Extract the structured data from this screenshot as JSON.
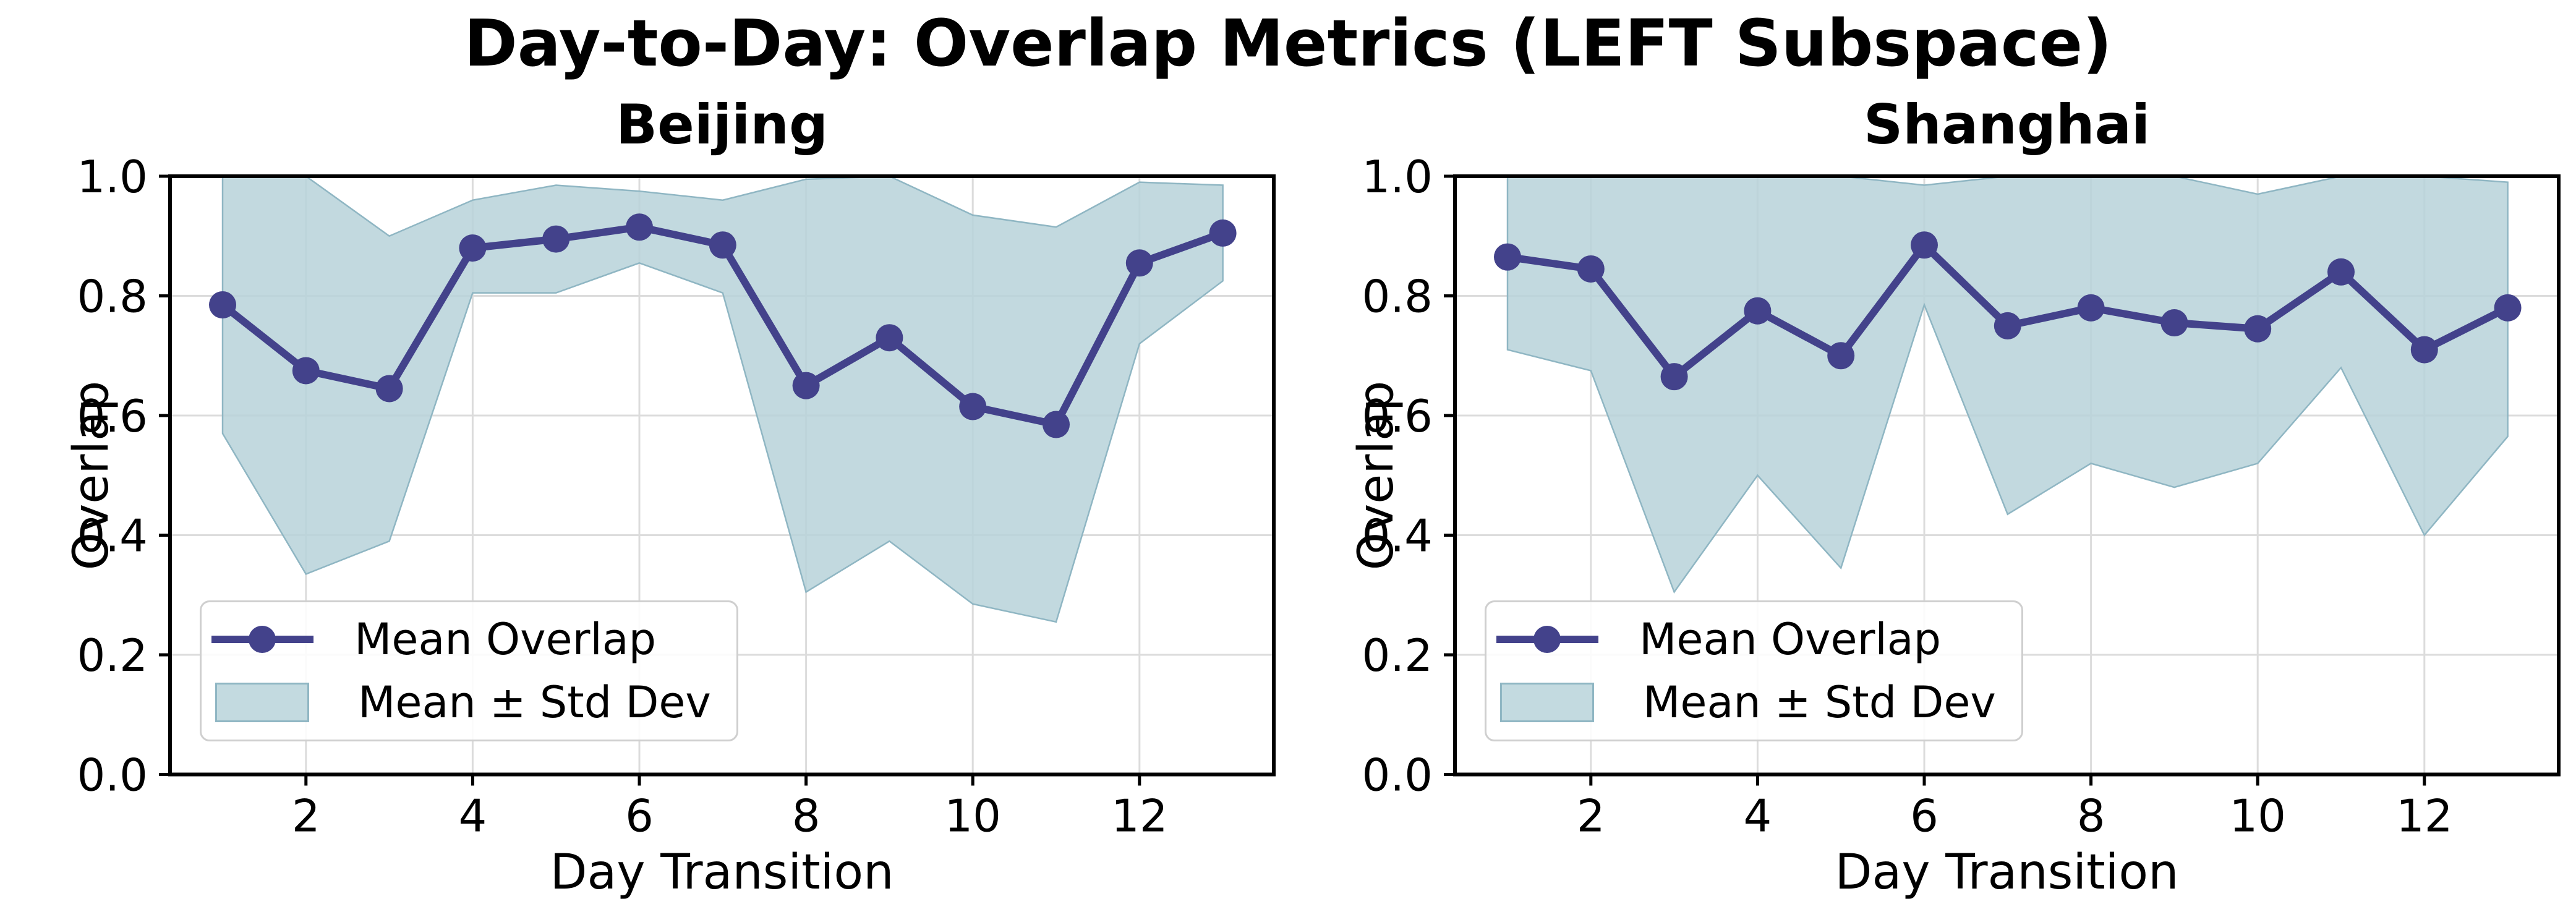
{
  "title": "Day-to-Day: Overlap Metrics (LEFT Subspace)",
  "legend": {
    "line_label": "Mean Overlap",
    "band_label": "Mean ± Std Dev"
  },
  "colors": {
    "line": "#43428b",
    "marker": "#43428b",
    "band_fill": "#b7d2d9",
    "band_edge": "#8fb6c3",
    "grid": "#dcdcdc",
    "spine": "#000000",
    "background": "#ffffff",
    "legend_border": "#cfcfcf",
    "text": "#000000"
  },
  "chart_data": [
    {
      "type": "line",
      "title": "Beijing",
      "xlabel": "Day Transition",
      "ylabel": "Overlap",
      "x": [
        1,
        2,
        3,
        4,
        5,
        6,
        7,
        8,
        9,
        10,
        11,
        12,
        13
      ],
      "series": [
        {
          "name": "Mean Overlap",
          "values": [
            0.785,
            0.675,
            0.645,
            0.88,
            0.895,
            0.915,
            0.885,
            0.65,
            0.73,
            0.615,
            0.585,
            0.855,
            0.905
          ]
        }
      ],
      "band": {
        "name": "Mean ± Std Dev",
        "upper": [
          1.0,
          1.0,
          0.9,
          0.96,
          0.985,
          0.975,
          0.96,
          0.995,
          1.0,
          0.935,
          0.915,
          0.99,
          0.985
        ],
        "lower": [
          0.57,
          0.335,
          0.39,
          0.805,
          0.805,
          0.855,
          0.805,
          0.305,
          0.39,
          0.285,
          0.255,
          0.72,
          0.825
        ]
      },
      "x_ticks": [
        2,
        4,
        6,
        8,
        10,
        12
      ],
      "x_tick_labels": [
        "2",
        "4",
        "6",
        "8",
        "10",
        "12"
      ],
      "y_ticks": [
        0.0,
        0.2,
        0.4,
        0.6,
        0.8,
        1.0
      ],
      "y_tick_labels": [
        "0.0",
        "0.2",
        "0.4",
        "0.6",
        "0.8",
        "1.0"
      ],
      "ylim": [
        0.0,
        1.0
      ],
      "xlim": [
        0.37,
        13.63
      ],
      "grid": true,
      "legend_position": "lower left"
    },
    {
      "type": "line",
      "title": "Shanghai",
      "xlabel": "Day Transition",
      "ylabel": "Overlap",
      "x": [
        1,
        2,
        3,
        4,
        5,
        6,
        7,
        8,
        9,
        10,
        11,
        12,
        13
      ],
      "series": [
        {
          "name": "Mean Overlap",
          "values": [
            0.865,
            0.845,
            0.665,
            0.775,
            0.7,
            0.885,
            0.75,
            0.78,
            0.755,
            0.745,
            0.84,
            0.71,
            0.78
          ]
        }
      ],
      "band": {
        "name": "Mean ± Std Dev",
        "upper": [
          1.0,
          1.0,
          1.0,
          1.0,
          1.0,
          0.985,
          1.0,
          1.0,
          1.0,
          0.97,
          1.0,
          1.0,
          0.99
        ],
        "lower": [
          0.71,
          0.675,
          0.305,
          0.5,
          0.345,
          0.785,
          0.435,
          0.52,
          0.48,
          0.52,
          0.68,
          0.4,
          0.565
        ]
      },
      "x_ticks": [
        2,
        4,
        6,
        8,
        10,
        12
      ],
      "x_tick_labels": [
        "2",
        "4",
        "6",
        "8",
        "10",
        "12"
      ],
      "y_ticks": [
        0.0,
        0.2,
        0.4,
        0.6,
        0.8,
        1.0
      ],
      "y_tick_labels": [
        "0.0",
        "0.2",
        "0.4",
        "0.6",
        "0.8",
        "1.0"
      ],
      "ylim": [
        0.0,
        1.0
      ],
      "xlim": [
        0.37,
        13.63
      ],
      "grid": true,
      "legend_position": "lower left"
    }
  ]
}
